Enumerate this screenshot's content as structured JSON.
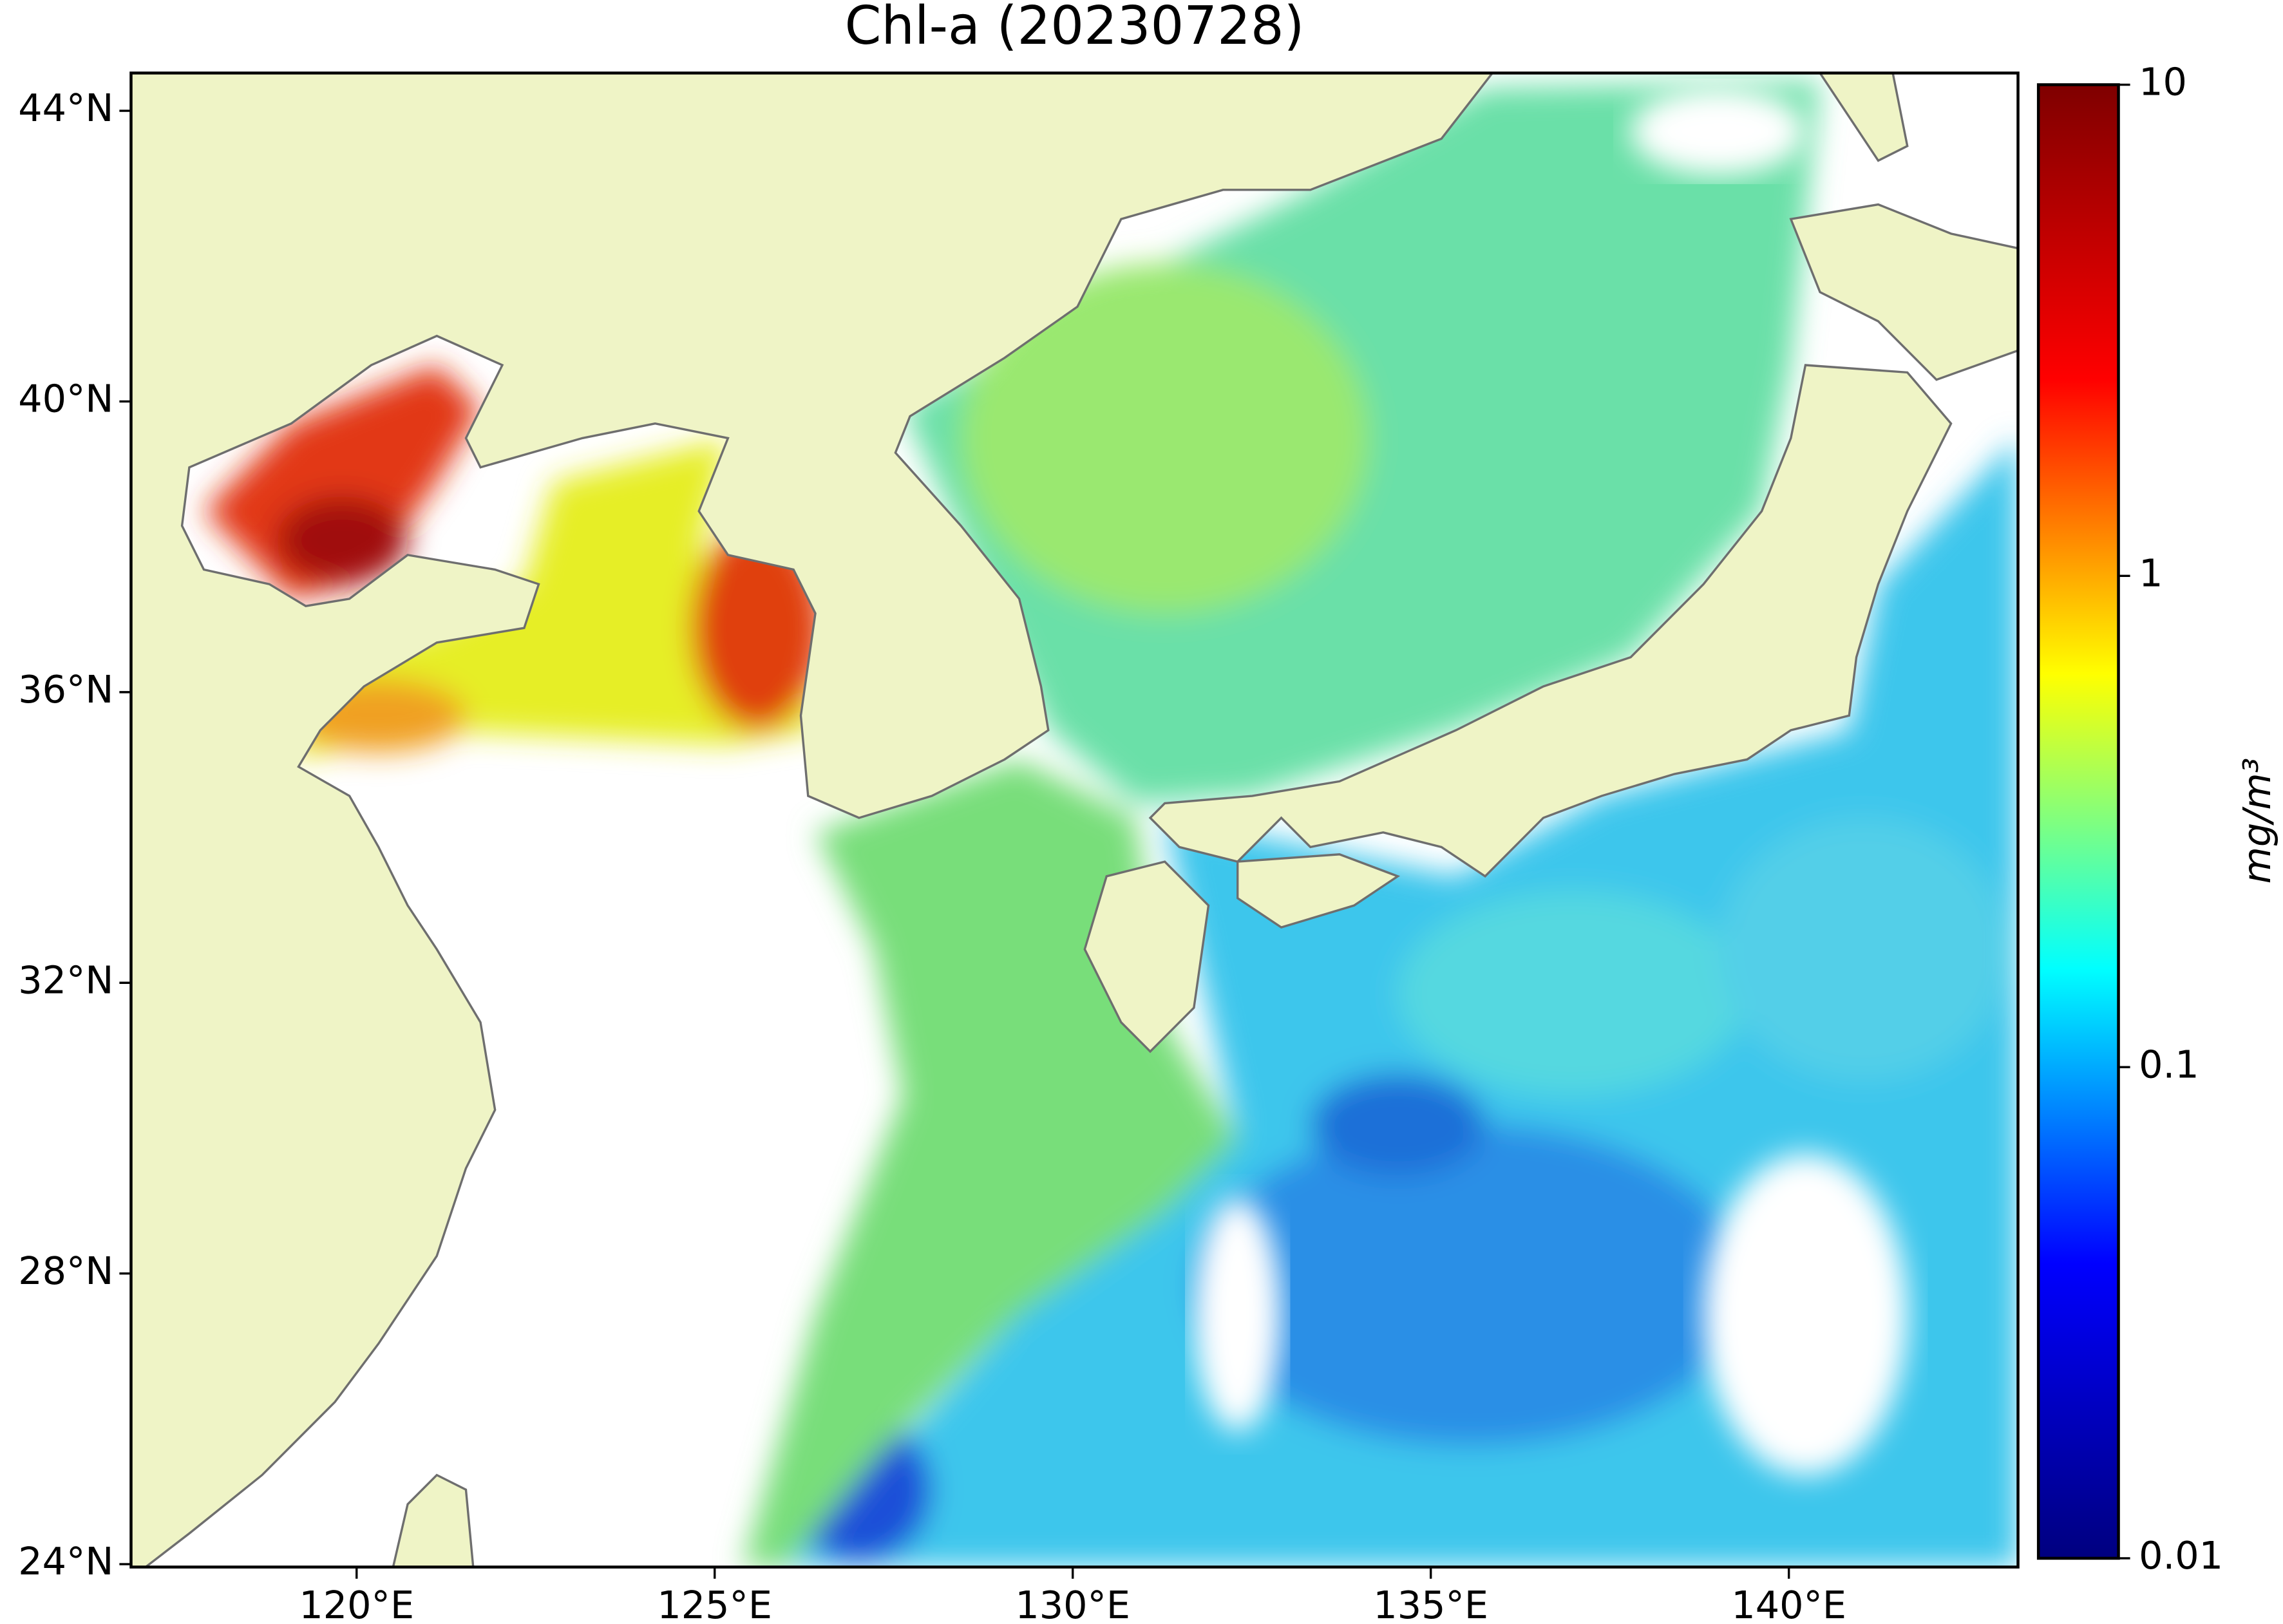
{
  "chart_data": {
    "type": "map",
    "title": "Chl-a (20230728)",
    "xlim": [
      116.85,
      143.2
    ],
    "ylim": [
      23.96,
      44.52
    ],
    "xticks": [
      {
        "value": 120,
        "label": "120°E"
      },
      {
        "value": 125,
        "label": "125°E"
      },
      {
        "value": 130,
        "label": "130°E"
      },
      {
        "value": 135,
        "label": "135°E"
      },
      {
        "value": 140,
        "label": "140°E"
      }
    ],
    "yticks": [
      {
        "value": 24,
        "label": "24°N"
      },
      {
        "value": 28,
        "label": "28°N"
      },
      {
        "value": 32,
        "label": "32°N"
      },
      {
        "value": 36,
        "label": "36°N"
      },
      {
        "value": 40,
        "label": "40°N"
      },
      {
        "value": 44,
        "label": "44°N"
      }
    ],
    "colorbar": {
      "label": "mg/m³",
      "log": true,
      "clim": [
        0.01,
        10
      ],
      "ticks": [
        0.01,
        0.1,
        1,
        10
      ],
      "colors": [
        "#00007f",
        "#0000ff",
        "#00ffff",
        "#ffff00",
        "#ff0000",
        "#7f0000"
      ]
    }
  }
}
